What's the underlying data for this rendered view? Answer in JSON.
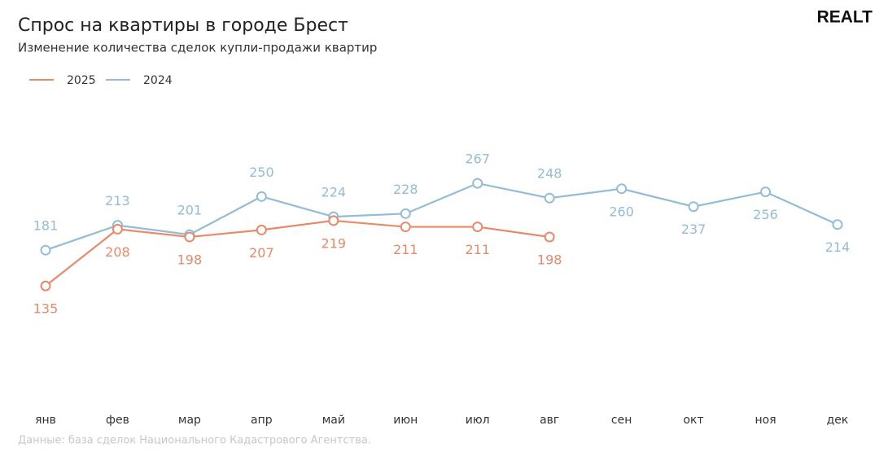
{
  "logo": "REALT",
  "chart_data": {
    "type": "line",
    "title": "Спрос на квартиры в городе Брест",
    "subtitle": "Изменение количества сделок купли-продажи квартир",
    "source": "Данные: база сделок Национального Кадастрового Агентства.",
    "categories": [
      "янв",
      "фев",
      "мар",
      "апр",
      "май",
      "июн",
      "июл",
      "авг",
      "сен",
      "окт",
      "ноя",
      "дек"
    ],
    "series": [
      {
        "name": "2025",
        "color": "#e8896a",
        "values": [
          135,
          208,
          198,
          207,
          219,
          211,
          211,
          198,
          null,
          null,
          null,
          null
        ]
      },
      {
        "name": "2024",
        "color": "#93bcd6",
        "values": [
          181,
          213,
          201,
          250,
          224,
          228,
          267,
          248,
          260,
          237,
          256,
          214
        ]
      }
    ],
    "ylim": [
      0,
      300
    ],
    "grid": false,
    "legend": "top-left"
  }
}
